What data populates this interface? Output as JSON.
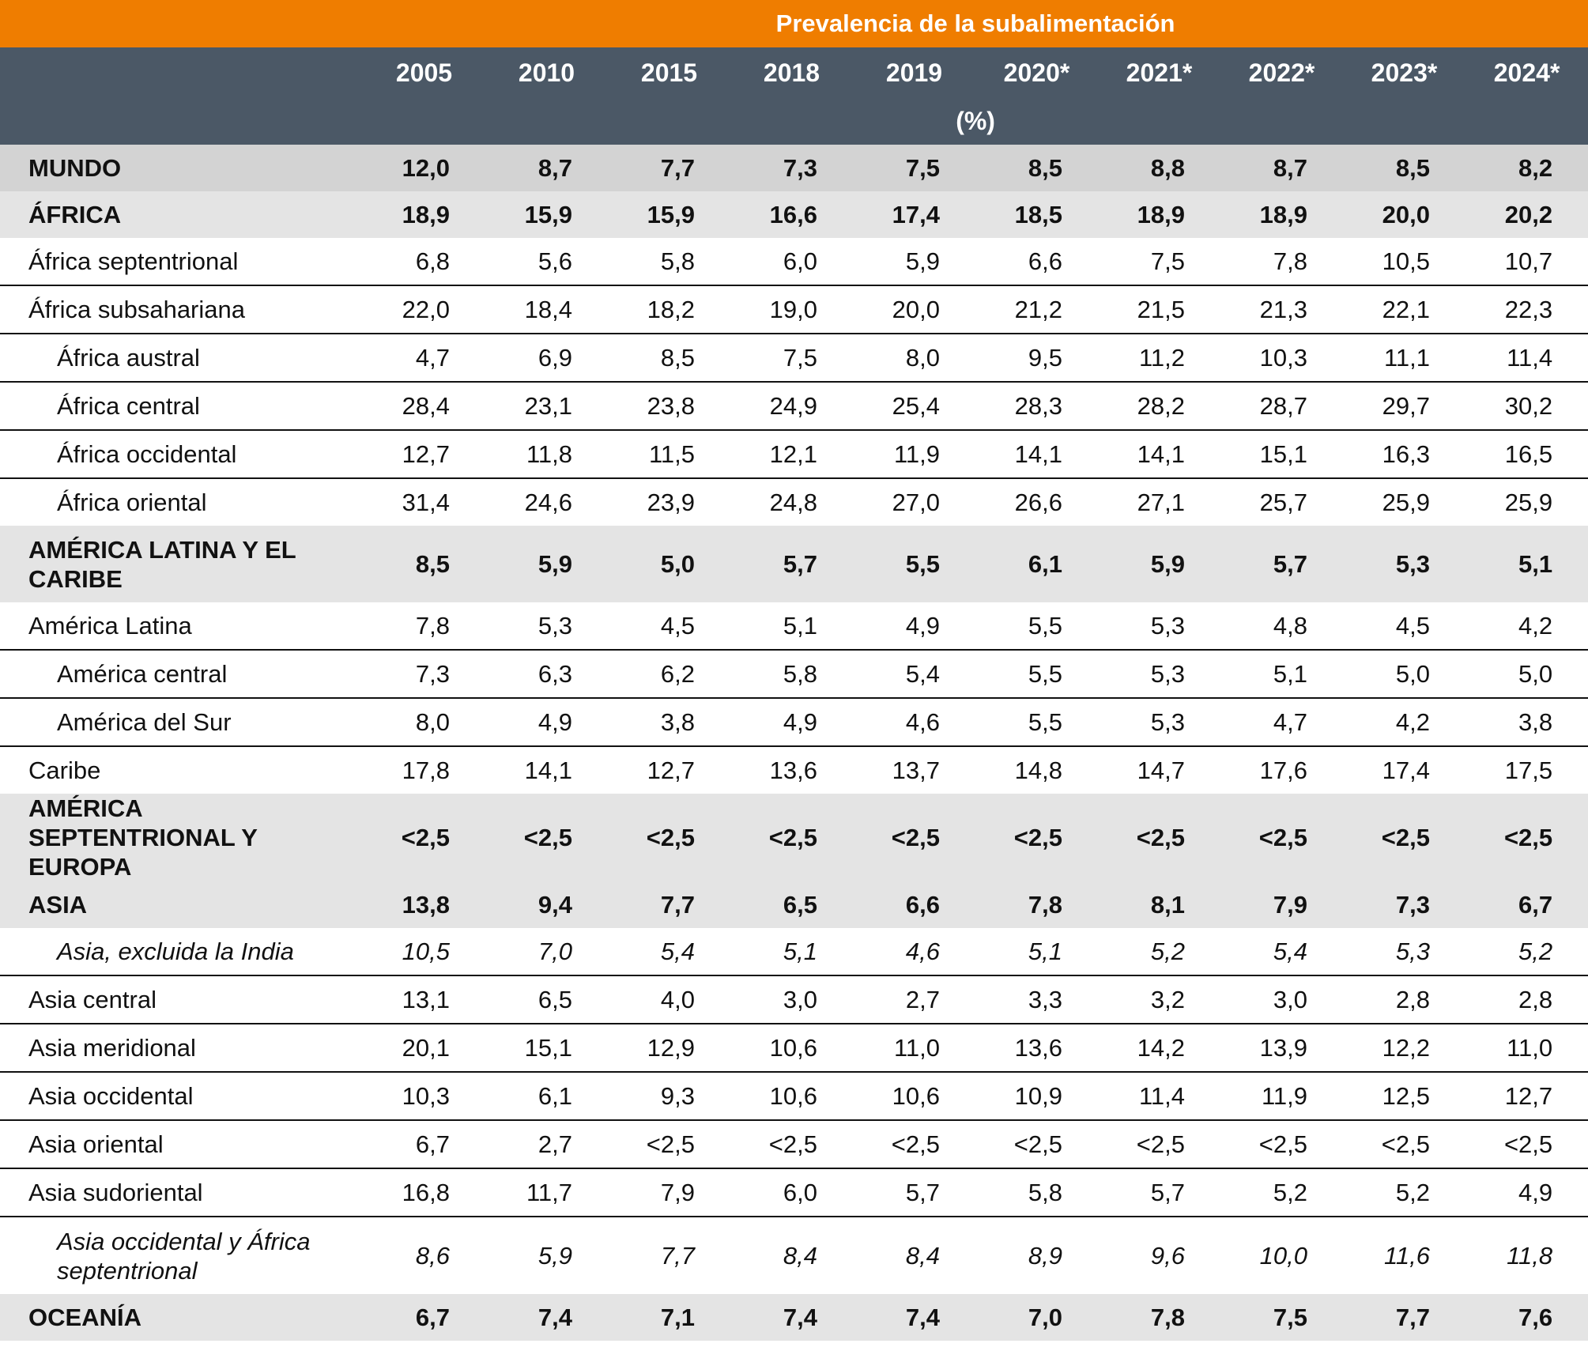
{
  "header": {
    "title": "Prevalencia de la subalimentación",
    "years": [
      "2005",
      "2010",
      "2015",
      "2018",
      "2019",
      "2020*",
      "2021*",
      "2022*",
      "2023*",
      "2024*"
    ],
    "unit": "(%)"
  },
  "colors": {
    "title_bar": "#ef7d00",
    "header_bar": "#4b5866",
    "world_row": "#d3d3d3",
    "region_row": "#e4e4e4"
  },
  "rows": [
    {
      "label": "MUNDO",
      "type": "world",
      "values": [
        "12,0",
        "8,7",
        "7,7",
        "7,3",
        "7,5",
        "8,5",
        "8,8",
        "8,7",
        "8,5",
        "8,2"
      ]
    },
    {
      "label": "ÁFRICA",
      "type": "region",
      "values": [
        "18,9",
        "15,9",
        "15,9",
        "16,6",
        "17,4",
        "18,5",
        "18,9",
        "18,9",
        "20,0",
        "20,2"
      ]
    },
    {
      "label": "África septentrional",
      "type": "sub",
      "values": [
        "6,8",
        "5,6",
        "5,8",
        "6,0",
        "5,9",
        "6,6",
        "7,5",
        "7,8",
        "10,5",
        "10,7"
      ]
    },
    {
      "label": "África subsahariana",
      "type": "sub",
      "values": [
        "22,0",
        "18,4",
        "18,2",
        "19,0",
        "20,0",
        "21,2",
        "21,5",
        "21,3",
        "22,1",
        "22,3"
      ]
    },
    {
      "label": "África austral",
      "type": "sub",
      "indent": true,
      "values": [
        "4,7",
        "6,9",
        "8,5",
        "7,5",
        "8,0",
        "9,5",
        "11,2",
        "10,3",
        "11,1",
        "11,4"
      ]
    },
    {
      "label": "África central",
      "type": "sub",
      "indent": true,
      "values": [
        "28,4",
        "23,1",
        "23,8",
        "24,9",
        "25,4",
        "28,3",
        "28,2",
        "28,7",
        "29,7",
        "30,2"
      ]
    },
    {
      "label": "África occidental",
      "type": "sub",
      "indent": true,
      "values": [
        "12,7",
        "11,8",
        "11,5",
        "12,1",
        "11,9",
        "14,1",
        "14,1",
        "15,1",
        "16,3",
        "16,5"
      ]
    },
    {
      "label": "África oriental",
      "type": "sub",
      "indent": true,
      "values": [
        "31,4",
        "24,6",
        "23,9",
        "24,8",
        "27,0",
        "26,6",
        "27,1",
        "25,7",
        "25,9",
        "25,9"
      ]
    },
    {
      "label": "AMÉRICA LATINA Y EL CARIBE",
      "type": "region",
      "double": true,
      "values": [
        "8,5",
        "5,9",
        "5,0",
        "5,7",
        "5,5",
        "6,1",
        "5,9",
        "5,7",
        "5,3",
        "5,1"
      ]
    },
    {
      "label": "América Latina",
      "type": "sub",
      "values": [
        "7,8",
        "5,3",
        "4,5",
        "5,1",
        "4,9",
        "5,5",
        "5,3",
        "4,8",
        "4,5",
        "4,2"
      ]
    },
    {
      "label": "América central",
      "type": "sub",
      "indent": true,
      "values": [
        "7,3",
        "6,3",
        "6,2",
        "5,8",
        "5,4",
        "5,5",
        "5,3",
        "5,1",
        "5,0",
        "5,0"
      ]
    },
    {
      "label": "América del Sur",
      "type": "sub",
      "indent": true,
      "values": [
        "8,0",
        "4,9",
        "3,8",
        "4,9",
        "4,6",
        "5,5",
        "5,3",
        "4,7",
        "4,2",
        "3,8"
      ]
    },
    {
      "label": "Caribe",
      "type": "sub",
      "values": [
        "17,8",
        "14,1",
        "12,7",
        "13,6",
        "13,7",
        "14,8",
        "14,7",
        "17,6",
        "17,4",
        "17,5"
      ]
    },
    {
      "label": "AMÉRICA SEPTENTRIONAL Y EUROPA",
      "type": "region",
      "double": true,
      "values": [
        "<2,5",
        "<2,5",
        "<2,5",
        "<2,5",
        "<2,5",
        "<2,5",
        "<2,5",
        "<2,5",
        "<2,5",
        "<2,5"
      ]
    },
    {
      "label": "ASIA",
      "type": "region",
      "values": [
        "13,8",
        "9,4",
        "7,7",
        "6,5",
        "6,6",
        "7,8",
        "8,1",
        "7,9",
        "7,3",
        "6,7"
      ]
    },
    {
      "label": "Asia, excluida la India",
      "type": "sub",
      "indent": true,
      "italic": true,
      "values": [
        "10,5",
        "7,0",
        "5,4",
        "5,1",
        "4,6",
        "5,1",
        "5,2",
        "5,4",
        "5,3",
        "5,2"
      ]
    },
    {
      "label": "Asia central",
      "type": "sub",
      "values": [
        "13,1",
        "6,5",
        "4,0",
        "3,0",
        "2,7",
        "3,3",
        "3,2",
        "3,0",
        "2,8",
        "2,8"
      ]
    },
    {
      "label": "Asia meridional",
      "type": "sub",
      "values": [
        "20,1",
        "15,1",
        "12,9",
        "10,6",
        "11,0",
        "13,6",
        "14,2",
        "13,9",
        "12,2",
        "11,0"
      ]
    },
    {
      "label": "Asia occidental",
      "type": "sub",
      "values": [
        "10,3",
        "6,1",
        "9,3",
        "10,6",
        "10,6",
        "10,9",
        "11,4",
        "11,9",
        "12,5",
        "12,7"
      ]
    },
    {
      "label": "Asia oriental",
      "type": "sub",
      "values": [
        "6,7",
        "2,7",
        "<2,5",
        "<2,5",
        "<2,5",
        "<2,5",
        "<2,5",
        "<2,5",
        "<2,5",
        "<2,5"
      ]
    },
    {
      "label": "Asia sudoriental",
      "type": "sub",
      "values": [
        "16,8",
        "11,7",
        "7,9",
        "6,0",
        "5,7",
        "5,8",
        "5,7",
        "5,2",
        "5,2",
        "4,9"
      ]
    },
    {
      "label": "Asia occidental y África septentrional",
      "type": "sub",
      "indent": true,
      "italic": true,
      "double": true,
      "values": [
        "8,6",
        "5,9",
        "7,7",
        "8,4",
        "8,4",
        "8,9",
        "9,6",
        "10,0",
        "11,6",
        "11,8"
      ]
    },
    {
      "label": "OCEANÍA",
      "type": "region",
      "values": [
        "6,7",
        "7,4",
        "7,1",
        "7,4",
        "7,4",
        "7,0",
        "7,8",
        "7,5",
        "7,7",
        "7,6"
      ]
    }
  ]
}
